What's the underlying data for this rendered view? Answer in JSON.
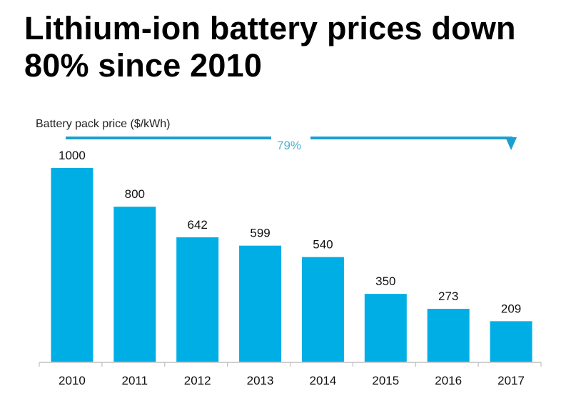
{
  "title": "Lithium-ion battery prices down 80% since 2010",
  "colors": {
    "bar": "#00aee6",
    "annotation": "#1a9fcf",
    "annotation_text": "#4fb3cf",
    "axis": "#bfbfbf",
    "text": "#111111"
  },
  "chart_data": {
    "type": "bar",
    "title": "Lithium-ion battery prices down 80% since 2010",
    "ylabel": "Battery pack price ($/kWh)",
    "xlabel": "",
    "categories": [
      "2010",
      "2011",
      "2012",
      "2013",
      "2014",
      "2015",
      "2016",
      "2017"
    ],
    "values": [
      1000,
      800,
      642,
      599,
      540,
      350,
      273,
      209
    ],
    "ylim": [
      0,
      1000
    ],
    "grid": false,
    "data_labels": true,
    "annotations": [
      {
        "type": "arrow",
        "from": "2010",
        "to": "2017",
        "label": "79%"
      }
    ]
  }
}
